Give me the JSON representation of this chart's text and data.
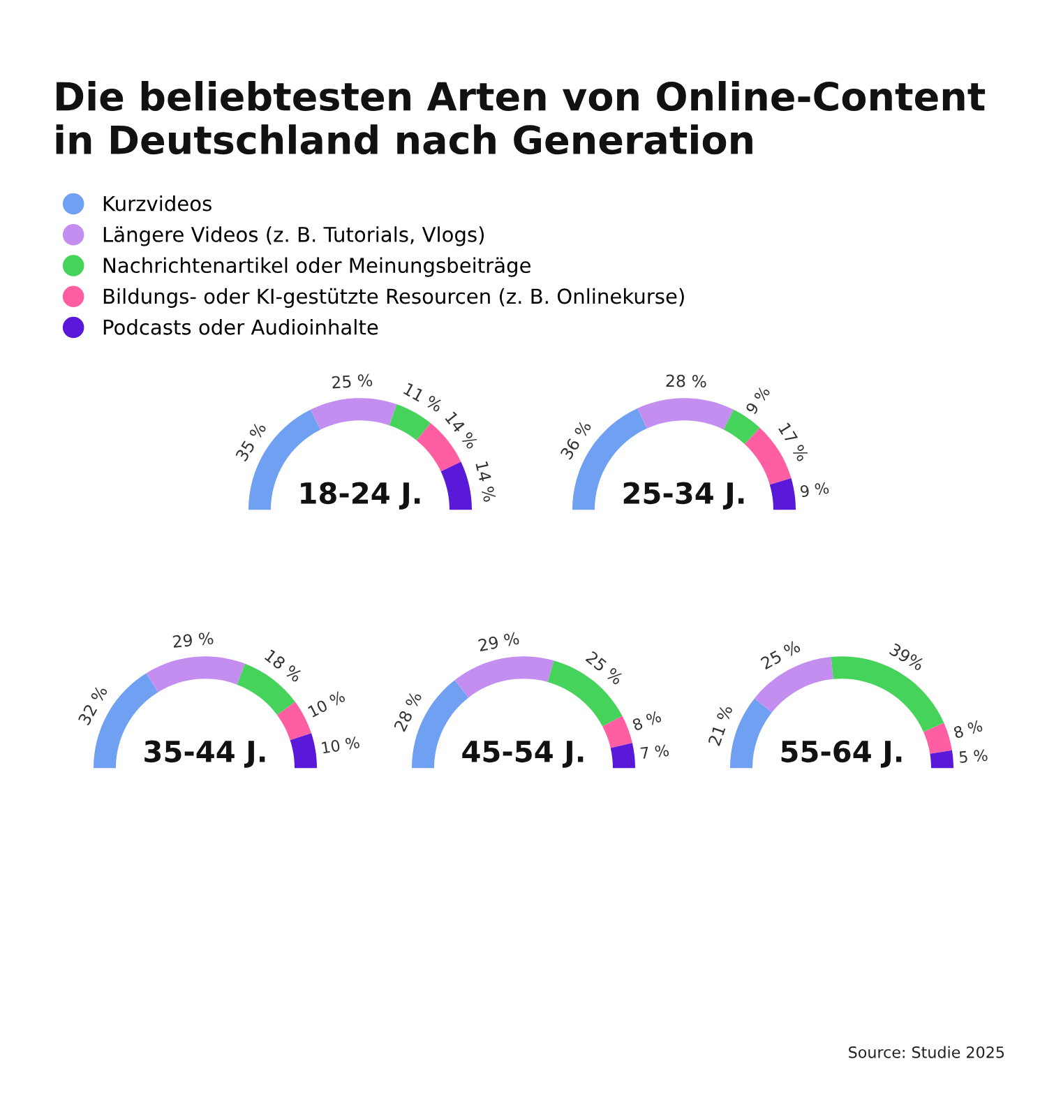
{
  "chart_data": [
    {
      "type": "other",
      "title": "Die beliebtesten Arten von Online-Content\nin Deutschland nach Generation",
      "annotations": [
        "Source: Studie 2025"
      ]
    },
    {
      "type": "donut",
      "title": "18-24 J.",
      "legend": "top",
      "categories": [
        "Kurzvideos",
        "Längere Videos (z. B. Tutorials, Vlogs)",
        "Nachrichtenartikel oder Meinungsbeiträge",
        "Bildungs- oder KI-gestützte Resourcen (z. B. Onlinekurse)",
        "Podcasts oder Audioinhalte"
      ],
      "values": [
        35,
        25,
        11,
        14,
        14
      ],
      "value_labels": [
        "35 %",
        "25 %",
        "11 %",
        "14 %",
        "14 %"
      ],
      "colors": [
        "#6fa0f2",
        "#c48ef0",
        "#46d35c",
        "#ff5fa2",
        "#5a18d8"
      ]
    },
    {
      "type": "donut",
      "title": "25-34 J.",
      "categories": [
        null,
        null,
        null,
        null,
        null
      ],
      "values": [
        36,
        28,
        9,
        17,
        9
      ],
      "value_labels": [
        "36 %",
        "28 %",
        "9 %",
        "17 %",
        "9 %"
      ],
      "colors": [
        "#6fa0f2",
        "#c48ef0",
        "#46d35c",
        "#ff5fa2",
        "#5a18d8"
      ]
    },
    {
      "type": "donut",
      "title": "35-44 J.",
      "categories": [
        null,
        null,
        null,
        null,
        null
      ],
      "values": [
        32,
        29,
        18,
        10,
        10
      ],
      "value_labels": [
        "32 %",
        "29 %",
        "18 %",
        "10 %",
        "10 %"
      ],
      "colors": [
        "#6fa0f2",
        "#c48ef0",
        "#46d35c",
        "#ff5fa2",
        "#5a18d8"
      ]
    },
    {
      "type": "donut",
      "title": "45-54 J.",
      "categories": [
        null,
        null,
        null,
        null,
        null
      ],
      "values": [
        28,
        29,
        25,
        8,
        7
      ],
      "value_labels": [
        "28 %",
        "29 %",
        "25 %",
        "8 %",
        "7 %"
      ],
      "colors": [
        "#6fa0f2",
        "#c48ef0",
        "#46d35c",
        "#ff5fa2",
        "#5a18d8"
      ]
    },
    {
      "type": "donut",
      "title": "55-64 J.",
      "categories": [
        null,
        null,
        null,
        null,
        null
      ],
      "values": [
        21,
        25,
        39,
        8,
        5
      ],
      "value_labels": [
        "21 %",
        "25 %",
        "39%",
        "8 %",
        "5 %"
      ],
      "colors": [
        "#6fa0f2",
        "#c48ef0",
        "#46d35c",
        "#ff5fa2",
        "#5a18d8"
      ]
    }
  ]
}
